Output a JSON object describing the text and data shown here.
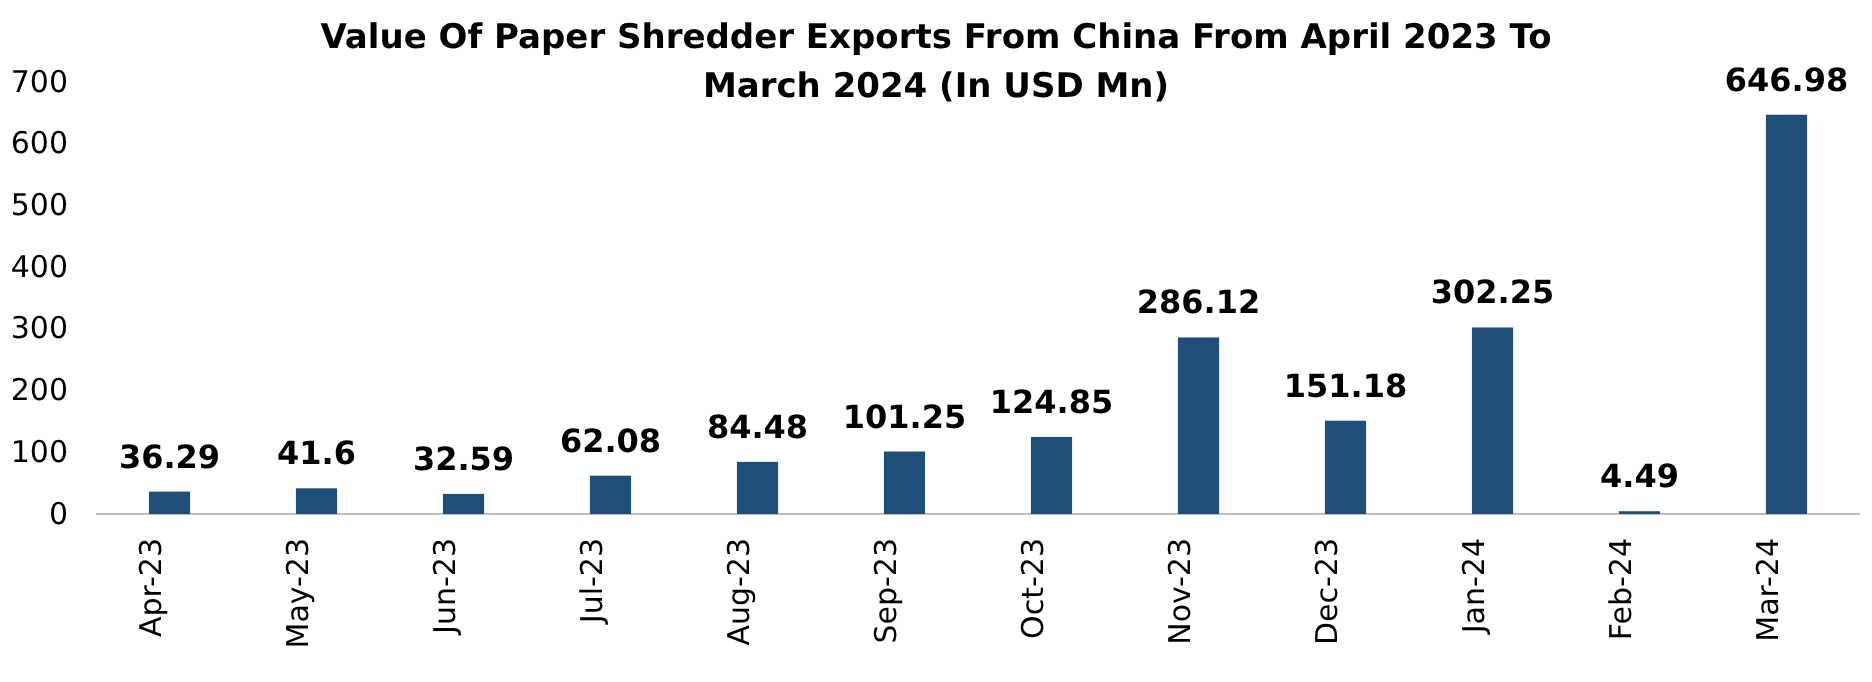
{
  "chart_data": {
    "type": "bar",
    "title": "Value Of Paper Shredder Exports From China  From April 2023 To March 2024 (In USD Mn)",
    "categories": [
      "Apr-23",
      "May-23",
      "Jun-23",
      "Jul-23",
      "Aug-23",
      "Sep-23",
      "Oct-23",
      "Nov-23",
      "Dec-23",
      "Jan-24",
      "Feb-24",
      "Mar-24"
    ],
    "values": [
      36.29,
      41.6,
      32.59,
      62.08,
      84.48,
      101.25,
      124.85,
      286.12,
      151.18,
      302.25,
      4.49,
      646.98
    ],
    "value_labels": [
      "36.29",
      "41.6",
      "32.59",
      "62.08",
      "84.48",
      "101.25",
      "124.85",
      "286.12",
      "151.18",
      "302.25",
      "4.49",
      "646.98"
    ],
    "color": "#1f4e79",
    "ylim": [
      0,
      700
    ],
    "yticks": [
      0,
      100,
      200,
      300,
      400,
      500,
      600,
      700
    ],
    "grid": false
  }
}
